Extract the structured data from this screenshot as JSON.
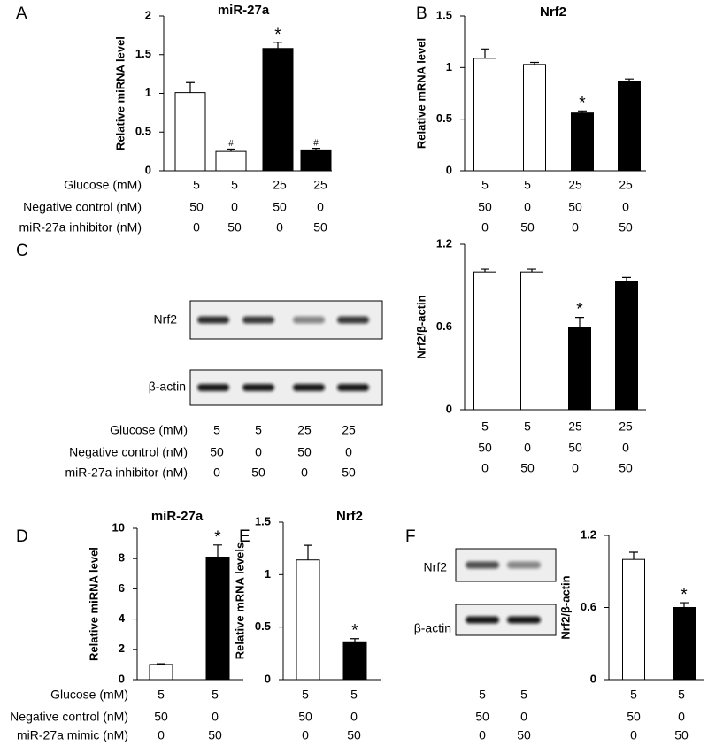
{
  "panel_labels": [
    "A",
    "B",
    "C",
    "D",
    "E",
    "F"
  ],
  "chart_data": [
    {
      "type": "bar",
      "title": "miR-27a",
      "ylabel": "Relative miRNA level",
      "values": [
        1.01,
        0.25,
        1.58,
        0.27
      ],
      "errors": [
        0.13,
        0.03,
        0.08,
        0.02
      ],
      "colors": [
        "#ffffff",
        "#ffffff",
        "#000000",
        "#000000"
      ],
      "annotations": [
        null,
        "#",
        "*",
        "#"
      ],
      "ylim": [
        0,
        2
      ],
      "yticks": [
        0,
        0.5,
        1,
        1.5,
        2
      ]
    },
    {
      "type": "bar",
      "title": "Nrf2",
      "ylabel": "Relative mRNA level",
      "values": [
        1.09,
        1.03,
        0.56,
        0.87
      ],
      "errors": [
        0.09,
        0.02,
        0.02,
        0.02
      ],
      "colors": [
        "#ffffff",
        "#ffffff",
        "#000000",
        "#000000"
      ],
      "annotations": [
        null,
        null,
        "*",
        null
      ],
      "ylim": [
        0,
        1.5
      ],
      "yticks": [
        0,
        0.5,
        1,
        1.5
      ]
    },
    {
      "type": "bar",
      "ylabel": "Nrf2/β-actin",
      "values": [
        1.0,
        1.0,
        0.6,
        0.93
      ],
      "errors": [
        0.02,
        0.02,
        0.07,
        0.03
      ],
      "colors": [
        "#ffffff",
        "#ffffff",
        "#000000",
        "#000000"
      ],
      "annotations": [
        null,
        null,
        "*",
        null
      ],
      "ylim": [
        0,
        1.2
      ],
      "yticks": [
        0,
        0.6,
        1.2
      ]
    },
    {
      "type": "bar",
      "title": "miR-27a",
      "ylabel": "Relative miRNA level",
      "values": [
        1.0,
        8.1
      ],
      "errors": [
        0.05,
        0.8
      ],
      "colors": [
        "#ffffff",
        "#000000"
      ],
      "annotations": [
        null,
        "*"
      ],
      "ylim": [
        0,
        10
      ],
      "yticks": [
        0,
        2,
        4,
        6,
        8,
        10
      ]
    },
    {
      "type": "bar",
      "title": "Nrf2",
      "ylabel": "Relative mRNA levels",
      "values": [
        1.14,
        0.36
      ],
      "errors": [
        0.14,
        0.03
      ],
      "colors": [
        "#ffffff",
        "#000000"
      ],
      "annotations": [
        null,
        "*"
      ],
      "ylim": [
        0,
        1.5
      ],
      "yticks": [
        0,
        0.5,
        1,
        1.5
      ]
    },
    {
      "type": "bar",
      "ylabel": "Nrf2/β-actin",
      "values": [
        1.0,
        0.6
      ],
      "errors": [
        0.06,
        0.04
      ],
      "colors": [
        "#ffffff",
        "#000000"
      ],
      "annotations": [
        null,
        "*"
      ],
      "ylim": [
        0,
        1.2
      ],
      "yticks": [
        0,
        0.6,
        1.2
      ]
    }
  ],
  "conditions": [
    {
      "row_labels": [
        "Glucose (mM)",
        "Negative control (nM)",
        "miR-27a inhibitor (nM)"
      ],
      "rows": [
        [
          5,
          5,
          25,
          25
        ],
        [
          50,
          0,
          50,
          0
        ],
        [
          0,
          50,
          0,
          50
        ]
      ]
    },
    {
      "rows": [
        [
          5,
          5,
          25,
          25
        ],
        [
          50,
          0,
          50,
          0
        ],
        [
          0,
          50,
          0,
          50
        ]
      ]
    },
    {
      "row_labels": [
        "Glucose (mM)",
        "Negative control (nM)",
        "miR-27a inhibitor (nM)"
      ],
      "rows": [
        [
          5,
          5,
          25,
          25
        ],
        [
          50,
          0,
          50,
          0
        ],
        [
          0,
          50,
          0,
          50
        ]
      ]
    },
    {
      "rows": [
        [
          5,
          5,
          25,
          25
        ],
        [
          50,
          0,
          50,
          0
        ],
        [
          0,
          50,
          0,
          50
        ]
      ]
    },
    {
      "row_labels": [
        "Glucose (mM)",
        "Negative control (nM)",
        "miR-27a mimic (nM)"
      ],
      "rows": [
        [
          5,
          5
        ],
        [
          50,
          0
        ],
        [
          0,
          50
        ]
      ]
    },
    {
      "rows": [
        [
          5,
          5
        ],
        [
          50,
          0
        ],
        [
          0,
          50
        ]
      ]
    },
    {
      "rows": [
        [
          5,
          5
        ],
        [
          50,
          0
        ],
        [
          0,
          50
        ]
      ]
    },
    {
      "rows": [
        [
          5,
          5
        ],
        [
          50,
          0
        ],
        [
          0,
          50
        ]
      ]
    }
  ],
  "blots": [
    {
      "labels": [
        "Nrf2",
        "β-actin"
      ]
    },
    {
      "labels": [
        "Nrf2",
        "β-actin"
      ]
    }
  ]
}
